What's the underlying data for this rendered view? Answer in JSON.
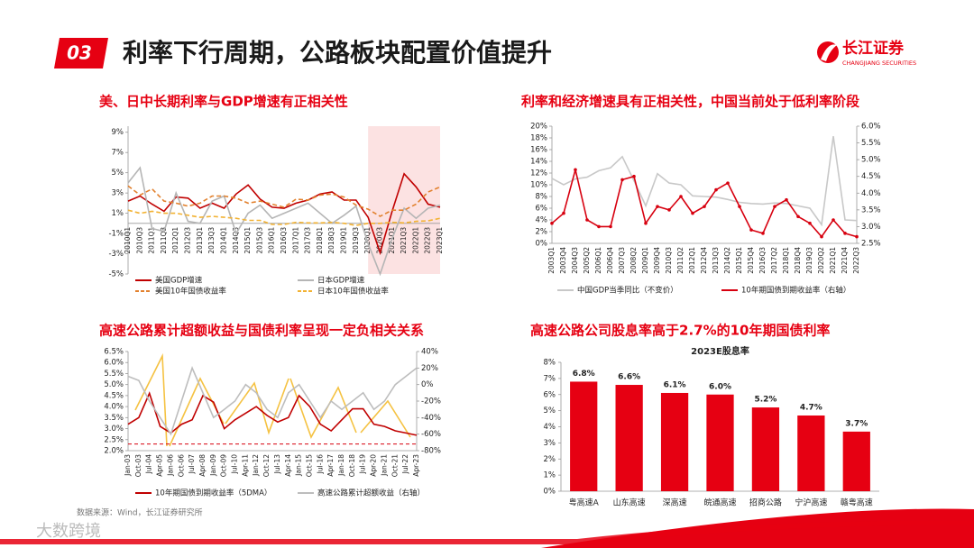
{
  "header": {
    "number": "03",
    "title": "利率下行周期，公路板块配置价值提升"
  },
  "logo": {
    "name": "长江证券",
    "subtitle": "CHANGJIANG SECURITIES"
  },
  "source": "数据来源：Wind，长江证券研究所",
  "watermark": "大数跨境",
  "chart_data": [
    {
      "type": "line",
      "title": "美、日中长期利率与GDP增速有正相关性",
      "categories": [
        "2010Q1",
        "2010Q3",
        "2011Q1",
        "2011Q3",
        "2012Q1",
        "2012Q3",
        "2013Q1",
        "2013Q3",
        "2014Q1",
        "2014Q3",
        "2015Q1",
        "2015Q3",
        "2016Q1",
        "2016Q3",
        "2017Q1",
        "2017Q3",
        "2018Q1",
        "2018Q3",
        "2019Q1",
        "2019Q3",
        "2020Q1",
        "2020Q3",
        "2021Q1",
        "2021Q3",
        "2022Q1",
        "2022Q3",
        "2023Q1"
      ],
      "ylim": [
        -5,
        9.6
      ],
      "yticks": [
        {
          "value": -5,
          "label": "-5%"
        },
        {
          "value": -3,
          "label": "-3%"
        },
        {
          "value": -1,
          "label": "-1%"
        },
        {
          "value": 1,
          "label": "1%"
        },
        {
          "value": 3,
          "label": "3%"
        },
        {
          "value": 5,
          "label": "5%"
        },
        {
          "value": 7,
          "label": "7%"
        },
        {
          "value": 9,
          "label": "9%"
        }
      ],
      "series": [
        {
          "name": "美国GDP增速",
          "color": "#c00000",
          "values": [
            2.2,
            2.7,
            1.9,
            1.2,
            2.6,
            2.5,
            1.5,
            2.0,
            1.5,
            2.9,
            3.8,
            2.4,
            1.6,
            1.5,
            2.0,
            2.3,
            2.9,
            3.1,
            2.3,
            2.3,
            0.6,
            -2.9,
            1.2,
            4.9,
            3.6,
            1.9,
            1.6
          ]
        },
        {
          "name": "日本GDP增速",
          "color": "#b5b5b5",
          "values": [
            4.0,
            5.5,
            -0.5,
            -0.8,
            3.0,
            0.2,
            0.0,
            2.2,
            2.7,
            -1.0,
            1.0,
            1.8,
            0.5,
            1.0,
            1.5,
            2.0,
            1.0,
            0.0,
            0.8,
            1.7,
            -2.0,
            -5.0,
            -1.5,
            1.5,
            0.5,
            1.5,
            1.8
          ]
        },
        {
          "name": "美国10年国债收益率",
          "color": "#e2812e",
          "dash": true,
          "values": [
            3.7,
            2.8,
            3.4,
            2.2,
            2.0,
            1.7,
            2.0,
            2.7,
            2.7,
            2.5,
            2.0,
            2.2,
            1.9,
            1.6,
            2.4,
            2.3,
            2.8,
            2.9,
            2.6,
            1.8,
            1.4,
            0.7,
            1.3,
            1.3,
            1.9,
            3.1,
            3.6
          ]
        },
        {
          "name": "日本10年国债收益率",
          "color": "#f2b233",
          "dash": true,
          "values": [
            1.3,
            1.0,
            1.2,
            1.0,
            1.0,
            0.8,
            0.6,
            0.7,
            0.6,
            0.5,
            0.3,
            0.3,
            -0.1,
            -0.1,
            0.1,
            0.05,
            0.05,
            0.1,
            0.0,
            -0.2,
            0.0,
            0.0,
            0.1,
            0.05,
            0.2,
            0.25,
            0.5
          ]
        }
      ]
    },
    {
      "type": "line",
      "title": "利率和经济增速具有正相关性，中国当前处于低利率阶段",
      "categories": [
        "2003Q1",
        "2003Q4",
        "2004Q3",
        "2005Q2",
        "2006Q1",
        "2006Q4",
        "2007Q3",
        "2008Q2",
        "2009Q1",
        "2009Q4",
        "2010Q3",
        "2011Q2",
        "2012Q1",
        "2012Q4",
        "2013Q3",
        "2014Q2",
        "2015Q1",
        "2015Q4",
        "2016Q3",
        "2017Q2",
        "2018Q1",
        "2018Q4",
        "2019Q3",
        "2020Q2",
        "2021Q1",
        "2021Q4",
        "2022Q3"
      ],
      "ylim": [
        0,
        20
      ],
      "yticks": [
        {
          "value": 0,
          "label": "0%"
        },
        {
          "value": 2,
          "label": "2%"
        },
        {
          "value": 4,
          "label": "4%"
        },
        {
          "value": 6,
          "label": "6%"
        },
        {
          "value": 8,
          "label": "8%"
        },
        {
          "value": 10,
          "label": "10%"
        },
        {
          "value": 12,
          "label": "12%"
        },
        {
          "value": 14,
          "label": "14%"
        },
        {
          "value": 16,
          "label": "16%"
        },
        {
          "value": 18,
          "label": "18%"
        },
        {
          "value": 20,
          "label": "20%"
        }
      ],
      "y2lim": [
        2.5,
        6.0
      ],
      "y2ticks": [
        {
          "value": 2.5,
          "label": "2.5%"
        },
        {
          "value": 3.0,
          "label": "3.0%"
        },
        {
          "value": 3.5,
          "label": "3.5%"
        },
        {
          "value": 4.0,
          "label": "4.0%"
        },
        {
          "value": 4.5,
          "label": "4.5%"
        },
        {
          "value": 5.0,
          "label": "5.0%"
        },
        {
          "value": 5.5,
          "label": "5.5%"
        },
        {
          "value": 6.0,
          "label": "6.0%"
        }
      ],
      "series": [
        {
          "name": "中国GDP当季同比（不变价）",
          "color": "#c8c8c8",
          "values": [
            11.1,
            10.0,
            11.0,
            11.3,
            12.4,
            12.9,
            14.8,
            10.7,
            6.4,
            11.9,
            10.3,
            10.0,
            8.1,
            8.0,
            7.9,
            7.5,
            7.0,
            6.8,
            6.7,
            6.9,
            6.8,
            6.4,
            6.0,
            3.2,
            18.3,
            4.0,
            3.9
          ]
        },
        {
          "name": "10年期国债到期收益率（右轴）",
          "color": "#d7000f",
          "axis": "y2",
          "marker": true,
          "values": [
            3.1,
            3.4,
            4.7,
            3.2,
            3.0,
            3.0,
            4.4,
            4.5,
            3.1,
            3.6,
            3.5,
            3.9,
            3.4,
            3.6,
            4.1,
            4.3,
            3.6,
            2.9,
            2.8,
            3.6,
            3.8,
            3.3,
            3.1,
            2.7,
            3.2,
            2.8,
            2.7
          ]
        }
      ]
    },
    {
      "type": "line",
      "title": "高速公路累计超额收益与国债利率呈现一定负相关关系",
      "categories": [
        "Jan-03",
        "Oct-03",
        "Jul-04",
        "Apr-05",
        "Jan-06",
        "Oct-06",
        "Jul-07",
        "Apr-08",
        "Jan-09",
        "Oct-09",
        "Jul-10",
        "Apr-11",
        "Jan-12",
        "Oct-12",
        "Jul-13",
        "Apr-14",
        "Jan-15",
        "Oct-15",
        "Jul-16",
        "Apr-17",
        "Jan-18",
        "Oct-18",
        "Jul-19",
        "Apr-20",
        "Jan-21",
        "Oct-21",
        "Jul-22",
        "Apr-23"
      ],
      "ylim": [
        2.0,
        6.5
      ],
      "yticks": [
        {
          "value": 2.0,
          "label": "2.0%"
        },
        {
          "value": 2.5,
          "label": "2.5%"
        },
        {
          "value": 3.0,
          "label": "3.0%"
        },
        {
          "value": 3.5,
          "label": "3.5%"
        },
        {
          "value": 4.0,
          "label": "4.0%"
        },
        {
          "value": 4.5,
          "label": "4.5%"
        },
        {
          "value": 5.0,
          "label": "5.0%"
        },
        {
          "value": 5.5,
          "label": "5.5%"
        },
        {
          "value": 6.0,
          "label": "6.0%"
        },
        {
          "value": 6.5,
          "label": "6.5%"
        }
      ],
      "y2lim": [
        -80,
        40
      ],
      "y2ticks": [
        {
          "value": -80,
          "label": "-80%"
        },
        {
          "value": -60,
          "label": "-60%"
        },
        {
          "value": -40,
          "label": "-40%"
        },
        {
          "value": -20,
          "label": "-20%"
        },
        {
          "value": 0,
          "label": "0%"
        },
        {
          "value": 20,
          "label": "20%"
        },
        {
          "value": 40,
          "label": "40%"
        }
      ],
      "reference_line": 2.3,
      "series": [
        {
          "name": "10年期国债到期收益率（5DMA）",
          "color": "#c00000",
          "values": [
            3.2,
            3.5,
            4.6,
            3.1,
            2.8,
            3.2,
            3.4,
            4.5,
            4.2,
            3.0,
            3.4,
            3.7,
            4.0,
            3.6,
            3.3,
            3.5,
            4.5,
            4.0,
            3.2,
            2.9,
            3.4,
            3.9,
            3.9,
            3.2,
            3.1,
            2.9,
            2.8,
            2.7
          ]
        },
        {
          "name": "高速公路累计超额收益（右轴）",
          "color": "#bdbdbd",
          "axis": "y2",
          "values": [
            10,
            5,
            -20,
            -40,
            -60,
            -20,
            20,
            -10,
            -40,
            -30,
            -20,
            0,
            -10,
            -30,
            -40,
            -10,
            0,
            -20,
            -40,
            -20,
            -30,
            -20,
            -10,
            -30,
            -20,
            0,
            10,
            20
          ]
        }
      ]
    },
    {
      "type": "bar",
      "title": "高速公路公司股息率高于2.7%的10年期国债利率",
      "subtitle": "2023E股息率",
      "categories": [
        "粤高速A",
        "山东高速",
        "深高速",
        "皖通高速",
        "招商公路",
        "宁沪高速",
        "赣粤高速"
      ],
      "values": [
        6.8,
        6.6,
        6.1,
        6.0,
        5.2,
        4.7,
        3.7
      ],
      "value_labels": [
        "6.8%",
        "6.6%",
        "6.1%",
        "6.0%",
        "5.2%",
        "4.7%",
        "3.7%"
      ],
      "color": "#e60012",
      "ylim": [
        0,
        8
      ],
      "yticks": [
        {
          "value": 0,
          "label": "0%"
        },
        {
          "value": 1,
          "label": "1%"
        },
        {
          "value": 2,
          "label": "2%"
        },
        {
          "value": 3,
          "label": "3%"
        },
        {
          "value": 4,
          "label": "4%"
        },
        {
          "value": 5,
          "label": "5%"
        },
        {
          "value": 6,
          "label": "6%"
        },
        {
          "value": 7,
          "label": "7%"
        },
        {
          "value": 8,
          "label": "8%"
        }
      ]
    }
  ]
}
